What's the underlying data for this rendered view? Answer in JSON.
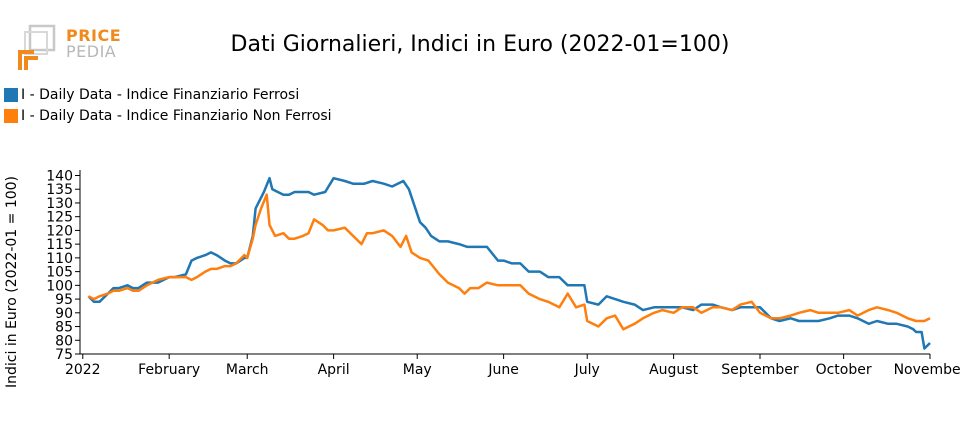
{
  "logo": {
    "line1": "PRICE",
    "line2": "PEDIA"
  },
  "colors": {
    "series_ferrosi": "#1f77b4",
    "series_non_ferrosi": "#ff7f0e",
    "logo_orange": "#f08a1c",
    "logo_gray": "#b8b8b8"
  },
  "chart_data": {
    "type": "line",
    "title": "Dati Giornalieri, Indici in Euro (2022-01=100)",
    "xlabel": "",
    "ylabel": "Indici in Euro (2022-01 = 100)",
    "ylim": [
      75,
      142
    ],
    "xlim": [
      "2021-12-31",
      "2022-11-01"
    ],
    "yticks": [
      75,
      80,
      85,
      90,
      95,
      100,
      105,
      110,
      115,
      120,
      125,
      130,
      135,
      140
    ],
    "xticks": [
      {
        "date": "2022-01-01",
        "label": "2022"
      },
      {
        "date": "2022-02-01",
        "label": "February"
      },
      {
        "date": "2022-03-01",
        "label": "March"
      },
      {
        "date": "2022-04-01",
        "label": "April"
      },
      {
        "date": "2022-05-01",
        "label": "May"
      },
      {
        "date": "2022-06-01",
        "label": "June"
      },
      {
        "date": "2022-07-01",
        "label": "July"
      },
      {
        "date": "2022-08-01",
        "label": "August"
      },
      {
        "date": "2022-09-01",
        "label": "September"
      },
      {
        "date": "2022-10-01",
        "label": "October"
      },
      {
        "date": "2022-11-01",
        "label": "November"
      }
    ],
    "grid": false,
    "legend_position": "top-left",
    "series": [
      {
        "name": "I - Daily Data - Indice Finanziario Ferrosi",
        "color": "#1f77b4",
        "points": [
          [
            "2022-01-03",
            96
          ],
          [
            "2022-01-05",
            94
          ],
          [
            "2022-01-07",
            94
          ],
          [
            "2022-01-10",
            97
          ],
          [
            "2022-01-12",
            99
          ],
          [
            "2022-01-14",
            99
          ],
          [
            "2022-01-17",
            100
          ],
          [
            "2022-01-19",
            99
          ],
          [
            "2022-01-21",
            99
          ],
          [
            "2022-01-24",
            101
          ],
          [
            "2022-01-26",
            101
          ],
          [
            "2022-01-28",
            101
          ],
          [
            "2022-02-01",
            103
          ],
          [
            "2022-02-03",
            103
          ],
          [
            "2022-02-07",
            104
          ],
          [
            "2022-02-09",
            109
          ],
          [
            "2022-02-11",
            110
          ],
          [
            "2022-02-14",
            111
          ],
          [
            "2022-02-16",
            112
          ],
          [
            "2022-02-18",
            111
          ],
          [
            "2022-02-21",
            109
          ],
          [
            "2022-02-23",
            108
          ],
          [
            "2022-02-25",
            108
          ],
          [
            "2022-02-28",
            110
          ],
          [
            "2022-03-01",
            110
          ],
          [
            "2022-03-03",
            118
          ],
          [
            "2022-03-04",
            128
          ],
          [
            "2022-03-07",
            134
          ],
          [
            "2022-03-09",
            139
          ],
          [
            "2022-03-10",
            135
          ],
          [
            "2022-03-14",
            133
          ],
          [
            "2022-03-16",
            133
          ],
          [
            "2022-03-18",
            134
          ],
          [
            "2022-03-21",
            134
          ],
          [
            "2022-03-23",
            134
          ],
          [
            "2022-03-25",
            133
          ],
          [
            "2022-03-29",
            134
          ],
          [
            "2022-04-01",
            139
          ],
          [
            "2022-04-05",
            138
          ],
          [
            "2022-04-08",
            137
          ],
          [
            "2022-04-12",
            137
          ],
          [
            "2022-04-15",
            138
          ],
          [
            "2022-04-19",
            137
          ],
          [
            "2022-04-22",
            136
          ],
          [
            "2022-04-26",
            138
          ],
          [
            "2022-04-28",
            135
          ],
          [
            "2022-05-02",
            123
          ],
          [
            "2022-05-04",
            121
          ],
          [
            "2022-05-06",
            118
          ],
          [
            "2022-05-09",
            116
          ],
          [
            "2022-05-12",
            116
          ],
          [
            "2022-05-16",
            115
          ],
          [
            "2022-05-19",
            114
          ],
          [
            "2022-05-23",
            114
          ],
          [
            "2022-05-26",
            114
          ],
          [
            "2022-05-30",
            109
          ],
          [
            "2022-06-01",
            109
          ],
          [
            "2022-06-04",
            108
          ],
          [
            "2022-06-07",
            108
          ],
          [
            "2022-06-10",
            105
          ],
          [
            "2022-06-14",
            105
          ],
          [
            "2022-06-17",
            103
          ],
          [
            "2022-06-21",
            103
          ],
          [
            "2022-06-24",
            100
          ],
          [
            "2022-06-27",
            100
          ],
          [
            "2022-06-30",
            100
          ],
          [
            "2022-07-01",
            94
          ],
          [
            "2022-07-05",
            93
          ],
          [
            "2022-07-08",
            96
          ],
          [
            "2022-07-11",
            95
          ],
          [
            "2022-07-14",
            94
          ],
          [
            "2022-07-18",
            93
          ],
          [
            "2022-07-21",
            91
          ],
          [
            "2022-07-25",
            92
          ],
          [
            "2022-07-28",
            92
          ],
          [
            "2022-08-01",
            92
          ],
          [
            "2022-08-04",
            92
          ],
          [
            "2022-08-08",
            91
          ],
          [
            "2022-08-11",
            93
          ],
          [
            "2022-08-15",
            93
          ],
          [
            "2022-08-18",
            92
          ],
          [
            "2022-08-22",
            91
          ],
          [
            "2022-08-25",
            92
          ],
          [
            "2022-08-29",
            92
          ],
          [
            "2022-09-01",
            92
          ],
          [
            "2022-09-05",
            88
          ],
          [
            "2022-09-08",
            87
          ],
          [
            "2022-09-12",
            88
          ],
          [
            "2022-09-15",
            87
          ],
          [
            "2022-09-19",
            87
          ],
          [
            "2022-09-22",
            87
          ],
          [
            "2022-09-26",
            88
          ],
          [
            "2022-09-29",
            89
          ],
          [
            "2022-10-03",
            89
          ],
          [
            "2022-10-06",
            88
          ],
          [
            "2022-10-10",
            86
          ],
          [
            "2022-10-13",
            87
          ],
          [
            "2022-10-17",
            86
          ],
          [
            "2022-10-20",
            86
          ],
          [
            "2022-10-24",
            85
          ],
          [
            "2022-10-26",
            84
          ],
          [
            "2022-10-27",
            83
          ],
          [
            "2022-10-29",
            83
          ],
          [
            "2022-10-30",
            77
          ],
          [
            "2022-11-01",
            79
          ]
        ]
      },
      {
        "name": "I - Daily Data - Indice Finanziario Non Ferrosi",
        "color": "#ff7f0e",
        "points": [
          [
            "2022-01-03",
            96
          ],
          [
            "2022-01-05",
            95
          ],
          [
            "2022-01-07",
            96
          ],
          [
            "2022-01-10",
            97
          ],
          [
            "2022-01-12",
            98
          ],
          [
            "2022-01-14",
            98
          ],
          [
            "2022-01-17",
            99
          ],
          [
            "2022-01-19",
            98
          ],
          [
            "2022-01-21",
            98
          ],
          [
            "2022-01-24",
            100
          ],
          [
            "2022-01-26",
            101
          ],
          [
            "2022-01-28",
            102
          ],
          [
            "2022-02-01",
            103
          ],
          [
            "2022-02-03",
            103
          ],
          [
            "2022-02-07",
            103
          ],
          [
            "2022-02-09",
            102
          ],
          [
            "2022-02-11",
            103
          ],
          [
            "2022-02-14",
            105
          ],
          [
            "2022-02-16",
            106
          ],
          [
            "2022-02-18",
            106
          ],
          [
            "2022-02-21",
            107
          ],
          [
            "2022-02-23",
            107
          ],
          [
            "2022-02-25",
            108
          ],
          [
            "2022-02-28",
            111
          ],
          [
            "2022-03-01",
            110
          ],
          [
            "2022-03-03",
            117
          ],
          [
            "2022-03-04",
            122
          ],
          [
            "2022-03-06",
            128
          ],
          [
            "2022-03-08",
            133
          ],
          [
            "2022-03-09",
            122
          ],
          [
            "2022-03-11",
            118
          ],
          [
            "2022-03-14",
            119
          ],
          [
            "2022-03-16",
            117
          ],
          [
            "2022-03-18",
            117
          ],
          [
            "2022-03-21",
            118
          ],
          [
            "2022-03-23",
            119
          ],
          [
            "2022-03-25",
            124
          ],
          [
            "2022-03-28",
            122
          ],
          [
            "2022-03-30",
            120
          ],
          [
            "2022-04-01",
            120
          ],
          [
            "2022-04-05",
            121
          ],
          [
            "2022-04-08",
            118
          ],
          [
            "2022-04-11",
            115
          ],
          [
            "2022-04-13",
            119
          ],
          [
            "2022-04-15",
            119
          ],
          [
            "2022-04-19",
            120
          ],
          [
            "2022-04-22",
            118
          ],
          [
            "2022-04-25",
            114
          ],
          [
            "2022-04-27",
            118
          ],
          [
            "2022-04-29",
            112
          ],
          [
            "2022-05-02",
            110
          ],
          [
            "2022-05-05",
            109
          ],
          [
            "2022-05-09",
            104
          ],
          [
            "2022-05-12",
            101
          ],
          [
            "2022-05-16",
            99
          ],
          [
            "2022-05-18",
            97
          ],
          [
            "2022-05-20",
            99
          ],
          [
            "2022-05-23",
            99
          ],
          [
            "2022-05-26",
            101
          ],
          [
            "2022-05-30",
            100
          ],
          [
            "2022-06-03",
            100
          ],
          [
            "2022-06-07",
            100
          ],
          [
            "2022-06-10",
            97
          ],
          [
            "2022-06-14",
            95
          ],
          [
            "2022-06-17",
            94
          ],
          [
            "2022-06-21",
            92
          ],
          [
            "2022-06-24",
            97
          ],
          [
            "2022-06-27",
            92
          ],
          [
            "2022-06-30",
            93
          ],
          [
            "2022-07-01",
            87
          ],
          [
            "2022-07-05",
            85
          ],
          [
            "2022-07-08",
            88
          ],
          [
            "2022-07-11",
            89
          ],
          [
            "2022-07-14",
            84
          ],
          [
            "2022-07-18",
            86
          ],
          [
            "2022-07-21",
            88
          ],
          [
            "2022-07-25",
            90
          ],
          [
            "2022-07-28",
            91
          ],
          [
            "2022-08-01",
            90
          ],
          [
            "2022-08-04",
            92
          ],
          [
            "2022-08-08",
            92
          ],
          [
            "2022-08-11",
            90
          ],
          [
            "2022-08-15",
            92
          ],
          [
            "2022-08-18",
            92
          ],
          [
            "2022-08-22",
            91
          ],
          [
            "2022-08-25",
            93
          ],
          [
            "2022-08-29",
            94
          ],
          [
            "2022-09-01",
            90
          ],
          [
            "2022-09-05",
            88
          ],
          [
            "2022-09-08",
            88
          ],
          [
            "2022-09-12",
            89
          ],
          [
            "2022-09-15",
            90
          ],
          [
            "2022-09-19",
            91
          ],
          [
            "2022-09-22",
            90
          ],
          [
            "2022-09-26",
            90
          ],
          [
            "2022-09-29",
            90
          ],
          [
            "2022-10-03",
            91
          ],
          [
            "2022-10-06",
            89
          ],
          [
            "2022-10-10",
            91
          ],
          [
            "2022-10-13",
            92
          ],
          [
            "2022-10-17",
            91
          ],
          [
            "2022-10-20",
            90
          ],
          [
            "2022-10-24",
            88
          ],
          [
            "2022-10-27",
            87
          ],
          [
            "2022-10-30",
            87
          ],
          [
            "2022-11-01",
            88
          ]
        ]
      }
    ]
  }
}
